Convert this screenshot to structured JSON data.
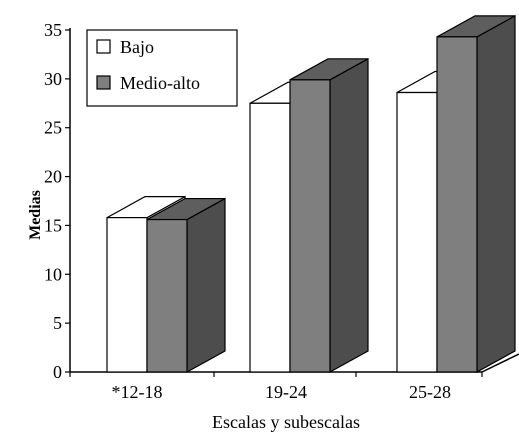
{
  "chart_data": {
    "type": "bar",
    "style": "3d-clustered",
    "title": "",
    "xlabel": "Escalas y subescalas",
    "ylabel": "Medias",
    "ylim": [
      0,
      35
    ],
    "yticks": [
      0,
      5,
      10,
      15,
      20,
      25,
      30,
      35
    ],
    "categories": [
      "*12-18",
      "19-24",
      "25-28"
    ],
    "series": [
      {
        "name": "Bajo",
        "color": "#ffffff",
        "values": [
          15.8,
          27.5,
          28.6
        ]
      },
      {
        "name": "Medio-alto",
        "color": "#7f7f7f",
        "values": [
          15.6,
          29.9,
          34.3
        ]
      }
    ],
    "legend_position": "top-left",
    "grid": false
  }
}
